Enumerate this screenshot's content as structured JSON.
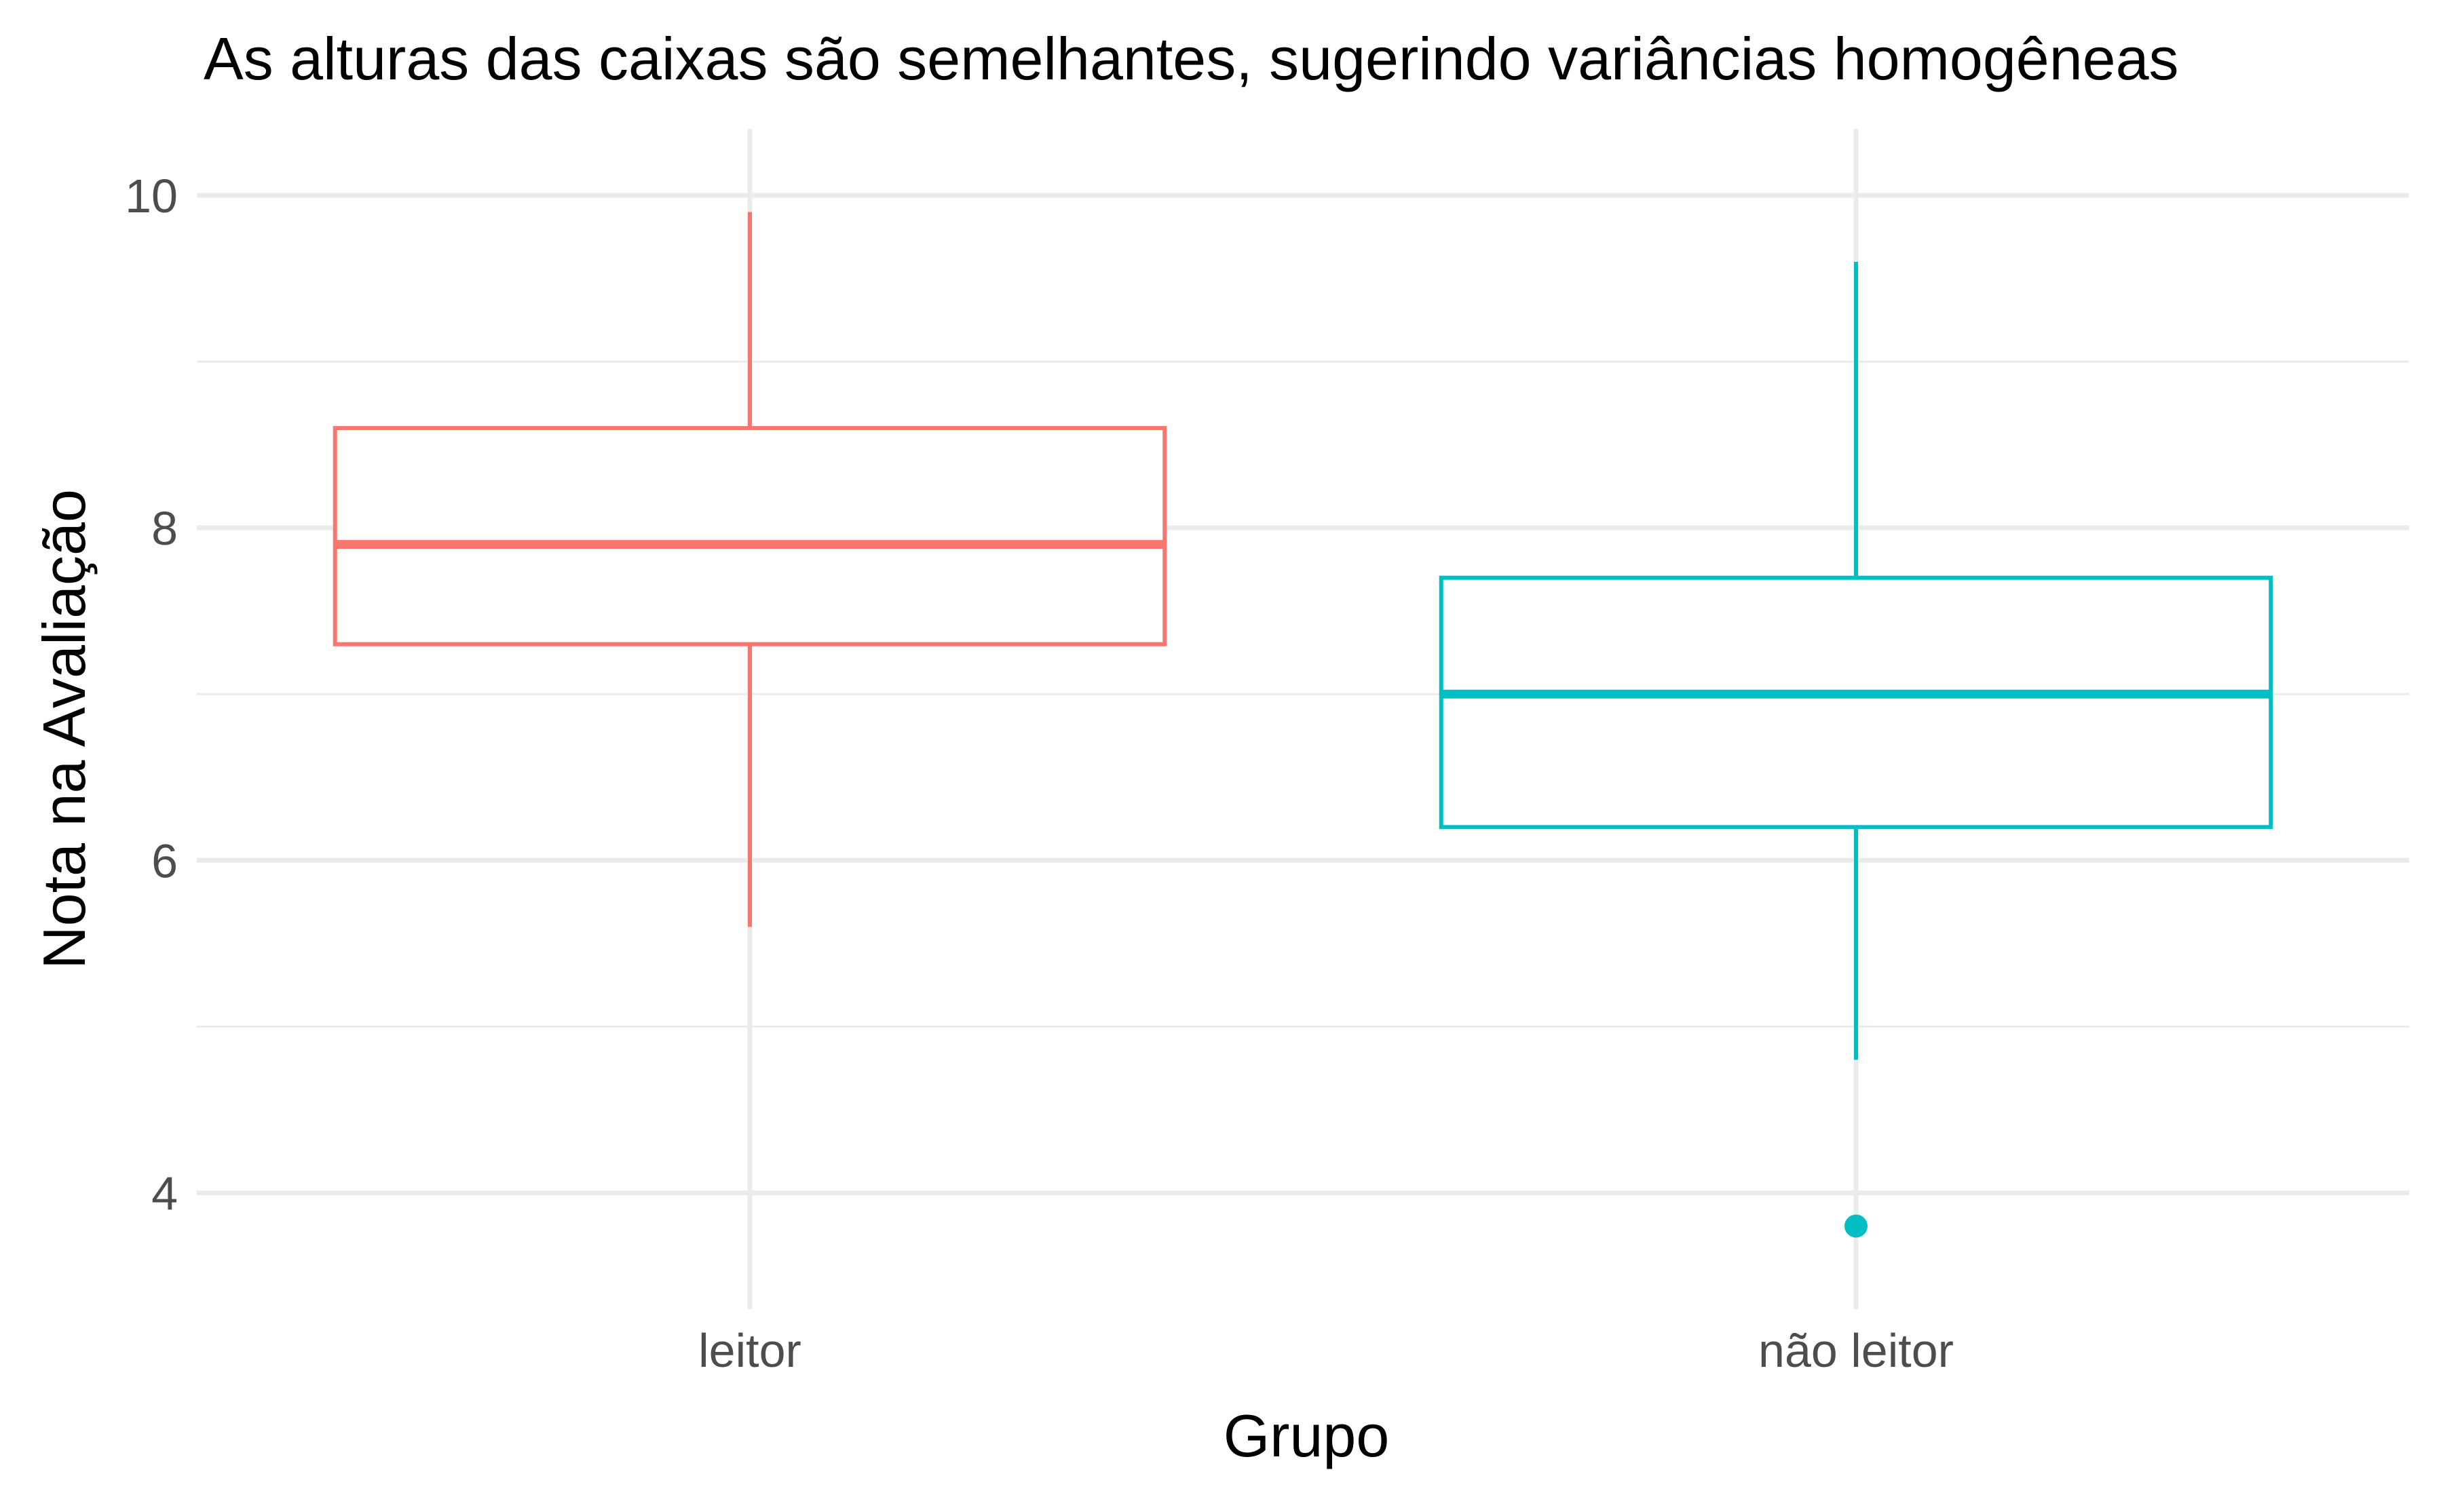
{
  "chart_data": {
    "type": "boxplot",
    "title": "As alturas das caixas são semelhantes, sugerindo variâncias homogêneas",
    "xlabel": "Grupo",
    "ylabel": "Nota na Avaliação",
    "ylim": [
      3.3,
      10.4
    ],
    "yticks": [
      4,
      6,
      8,
      10
    ],
    "minor_gridlines": [
      5,
      7,
      9
    ],
    "grid": true,
    "legend": "none",
    "categories": [
      "leitor",
      "não leitor"
    ],
    "boxes": [
      {
        "category": "leitor",
        "color": "#F8766D",
        "whisker_low": 5.6,
        "q1": 7.3,
        "median": 7.9,
        "q3": 8.6,
        "whisker_high": 9.9,
        "outliers": []
      },
      {
        "category": "não leitor",
        "color": "#00BFC4",
        "whisker_low": 4.8,
        "q1": 6.2,
        "median": 7.0,
        "q3": 7.7,
        "whisker_high": 9.6,
        "outliers": [
          3.8
        ]
      }
    ]
  }
}
